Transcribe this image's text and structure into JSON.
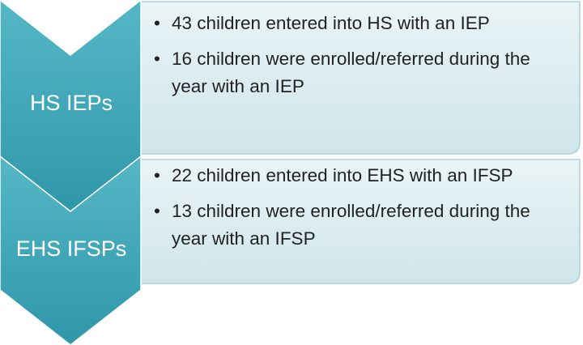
{
  "items": [
    {
      "label": "HS IEPs",
      "bullets": [
        "43 children entered into HS with an IEP",
        "16 children were enrolled/referred during the year with an IEP"
      ]
    },
    {
      "label": "EHS IFSPs",
      "bullets": [
        "22 children entered into EHS with an IFSP",
        "13 children were enrolled/referred during the year with an IFSP"
      ]
    }
  ]
}
